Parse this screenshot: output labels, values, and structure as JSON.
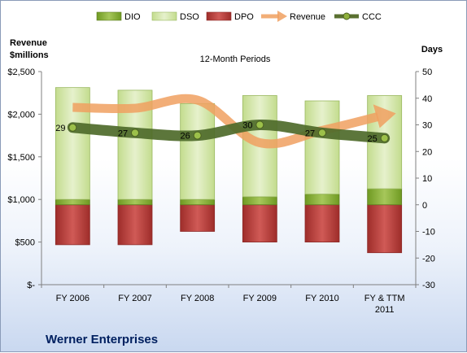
{
  "chart_data": {
    "type": "bar",
    "title": "12-Month Periods",
    "company": "Werner Enterprises",
    "left_axis_label_line1": "Revenue",
    "left_axis_label_line2": "$millions",
    "right_axis_label": "Days",
    "categories": [
      {
        "line1": "FY 2006",
        "line2": ""
      },
      {
        "line1": "FY 2007",
        "line2": ""
      },
      {
        "line1": "FY 2008",
        "line2": ""
      },
      {
        "line1": "FY 2009",
        "line2": ""
      },
      {
        "line1": "FY 2010",
        "line2": ""
      },
      {
        "line1": "FY & TTM",
        "line2": "2011"
      }
    ],
    "left_axis": {
      "min": 0,
      "max": 2500,
      "step": 500,
      "tick_labels": [
        "$-",
        "$500",
        "$1,000",
        "$1,500",
        "$2,000",
        "$2,500"
      ]
    },
    "right_axis": {
      "min": -30,
      "max": 50,
      "step": 10,
      "tick_labels": [
        "-30",
        "-20",
        "-10",
        "0",
        "10",
        "20",
        "30",
        "40",
        "50"
      ]
    },
    "series": [
      {
        "name": "DIO",
        "axis": "days",
        "color": "#8fb03c",
        "values": [
          2,
          2,
          2,
          3,
          4,
          6
        ]
      },
      {
        "name": "DSO",
        "axis": "days",
        "color": "#d6e8b0",
        "values": [
          42,
          41,
          36,
          38,
          35,
          35
        ]
      },
      {
        "name": "DPO",
        "axis": "days",
        "color": "#c0504d",
        "values": [
          -15,
          -15,
          -10,
          -14,
          -14,
          -18
        ]
      },
      {
        "name": "Revenue",
        "axis": "revenue",
        "color": "#f0a060",
        "values": [
          2080,
          2070,
          2165,
          1665,
          1810,
          2000
        ]
      },
      {
        "name": "CCC",
        "axis": "days",
        "color": "#5a7030",
        "values": [
          29,
          27,
          26,
          30,
          27,
          25
        ]
      }
    ],
    "ccc_labels": [
      "29",
      "27",
      "26",
      "30",
      "27",
      "25"
    ],
    "grid": false,
    "legend_position": "top"
  }
}
